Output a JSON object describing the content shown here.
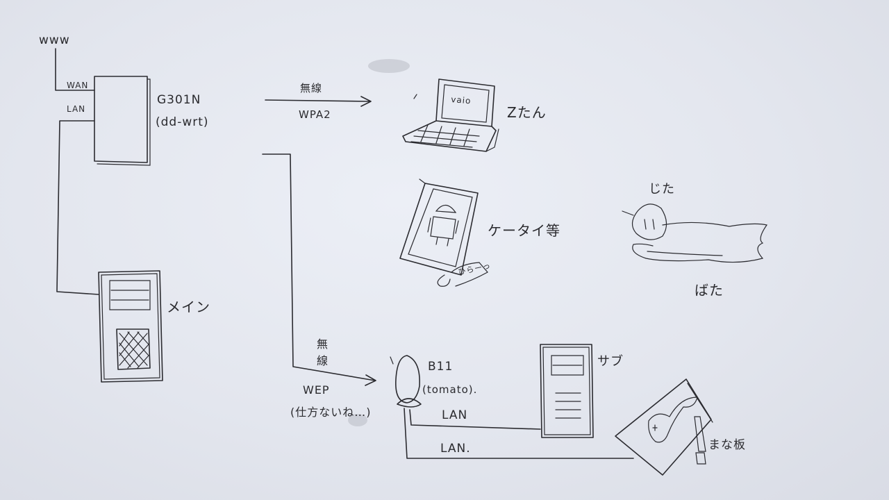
{
  "diagram": {
    "nodes": {
      "internet": {
        "label": "www"
      },
      "router": {
        "name": "G301N",
        "firmware": "(dd-wrt)",
        "ports": {
          "wan": "WAN",
          "lan": "LAN"
        }
      },
      "main_pc": {
        "label": "メイン"
      },
      "laptop": {
        "label": "Zたん",
        "screen_text": "vaio"
      },
      "phone": {
        "label": "ケータイ等",
        "strap": "ひらーっ"
      },
      "cats": {
        "top": "じた",
        "bottom": "ばた"
      },
      "bridge": {
        "name": "B11",
        "host": "(tomato)."
      },
      "sub_pc": {
        "label": "サブ"
      },
      "board": {
        "label": "まな板"
      }
    },
    "links": {
      "wireless_1": {
        "medium": "無線",
        "security": "WPA2"
      },
      "wireless_2": {
        "medium_line1": "無",
        "medium_line2": "線",
        "security": "WEP",
        "note": "(仕方ないね…)"
      },
      "bridge_to_sub": "LAN",
      "bridge_to_board": "LAN."
    }
  }
}
